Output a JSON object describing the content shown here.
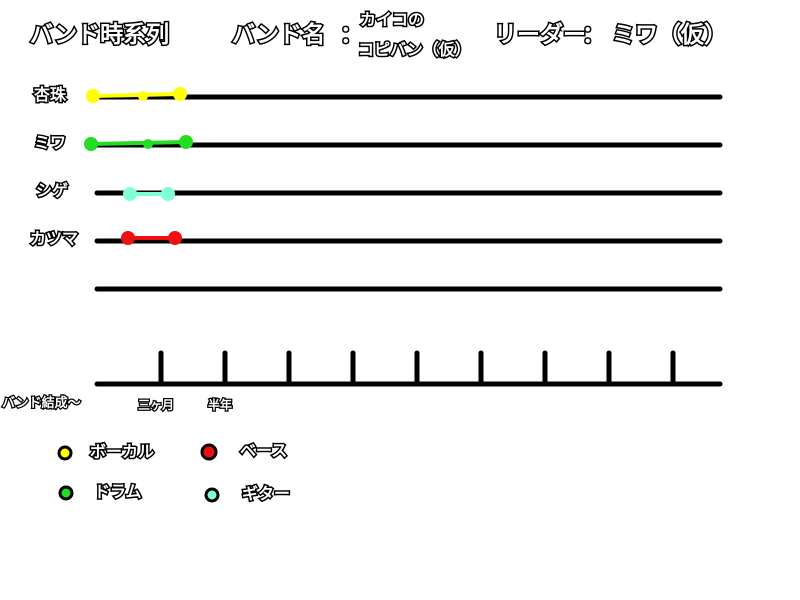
{
  "header": {
    "title": "バンド時系列",
    "band_label": "バンド名",
    "band_colon": "：",
    "band_name_line1": "カイコの",
    "band_name_line2": "コピバン（仮）",
    "leader_label": "リーダー",
    "leader_colon": "：",
    "leader_name": "ミワ（仮）"
  },
  "members": [
    {
      "name": "杏珠",
      "part": "ボーカル",
      "color": "#ffff00"
    },
    {
      "name": "ミワ",
      "part": "ドラム",
      "color": "#22dd22"
    },
    {
      "name": "シゲ",
      "part": "ギター",
      "color": "#7fffd4"
    },
    {
      "name": "カツマ",
      "part": "ベース",
      "color": "#ee1111"
    }
  ],
  "axis": {
    "start_label": "バンド結成〜",
    "tick1_label": "三ヶ月",
    "tick2_label": "半年"
  },
  "legend": [
    {
      "label": "ボーカル",
      "color": "#ffff00"
    },
    {
      "label": "ベース",
      "color": "#ee1111"
    },
    {
      "label": "ドラム",
      "color": "#22dd22"
    },
    {
      "label": "ギター",
      "color": "#7fffd4"
    }
  ]
}
